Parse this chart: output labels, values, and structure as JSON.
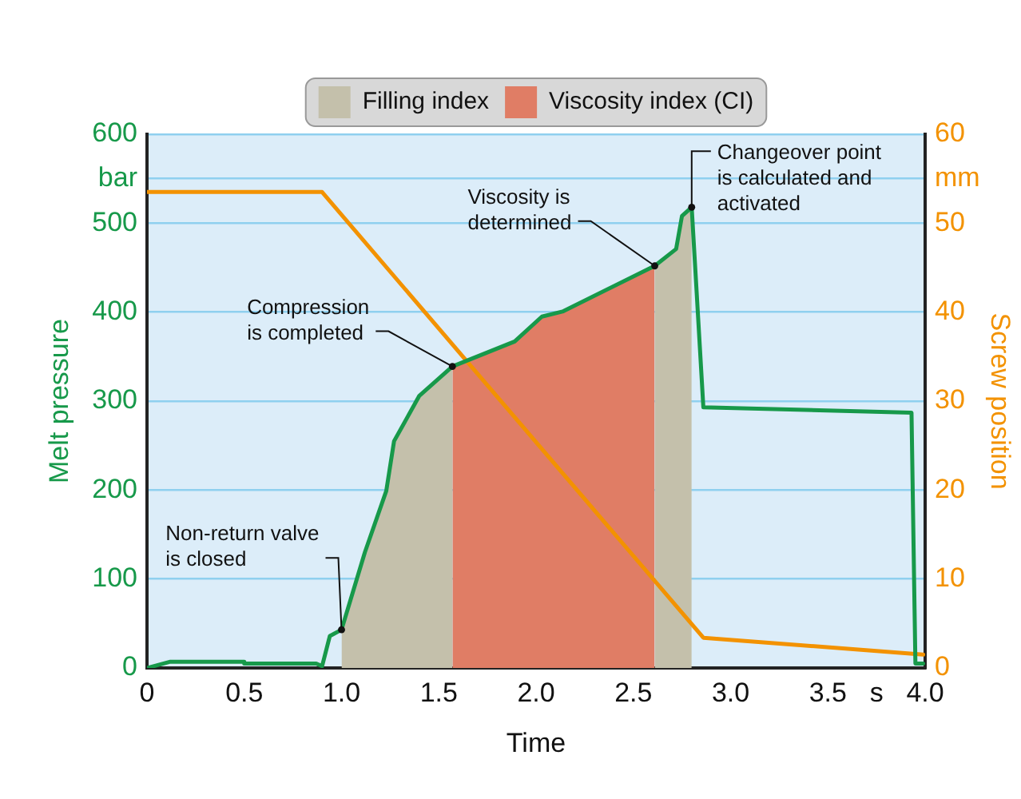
{
  "chart_data": {
    "type": "line",
    "xlabel": "Time",
    "ylabel": "Melt pressure",
    "y2label": "Screw position",
    "xlim": [
      0,
      4
    ],
    "xticks": [
      0,
      0.5,
      {
        "value": 1,
        "label": "1.0"
      },
      1.5,
      {
        "value": 2,
        "label": "2.0"
      },
      2.5,
      {
        "value": 3,
        "label": "3.0"
      },
      3.5,
      {
        "value": 3.75,
        "label": "s"
      },
      {
        "value": 4,
        "label": "4.0"
      }
    ],
    "ylim": [
      0,
      600
    ],
    "yticks": [
      0,
      100,
      200,
      300,
      400,
      500,
      {
        "value": 550,
        "label": "bar"
      },
      600
    ],
    "y2lim": [
      0,
      60
    ],
    "y2ticks": [
      0,
      10,
      20,
      30,
      40,
      50,
      {
        "value": 55,
        "label": "mm"
      },
      60
    ],
    "grid": "y",
    "legend": "top",
    "marker": "none",
    "line_style": "solid",
    "series": [
      {
        "color": "#17994a",
        "x": [
          0,
          0.12,
          0.5,
          0.5,
          0.87,
          0.9,
          0.94,
          1.0,
          1.12,
          1.23,
          1.27,
          1.4,
          1.57,
          1.89,
          2.03,
          2.14,
          2.61,
          2.72,
          2.75,
          2.8,
          2.86,
          3.93,
          3.95,
          3.99
        ],
        "values": [
          0,
          7,
          7,
          5,
          5,
          2,
          36,
          43,
          130,
          199,
          255,
          306,
          339,
          367,
          395,
          401,
          452,
          471,
          508,
          518,
          293,
          287,
          5,
          5
        ]
      },
      {
        "color": "#f39200",
        "axis": "y2",
        "x": [
          0,
          0.9,
          2.86,
          3.99
        ],
        "values": [
          53.5,
          53.5,
          3.4,
          1.5
        ]
      },
      {
        "type": "area",
        "name": "Filling index",
        "color": "#c4c0ab",
        "x": [
          1.0,
          1.12,
          1.23,
          1.27,
          1.4,
          1.57,
          2.0,
          2.61,
          2.72,
          2.75,
          2.8
        ],
        "values": [
          43,
          130,
          199,
          255,
          306,
          339,
          null,
          452,
          471,
          508,
          518
        ]
      },
      {
        "type": "area",
        "name": "Viscosity index (CI)",
        "color": "#e07d65",
        "x": [
          1.57,
          1.89,
          2.03,
          2.14,
          2.61
        ],
        "values": [
          339,
          367,
          395,
          401,
          452
        ]
      }
    ],
    "annotations": [
      {
        "text": "Non-return valve\nis closed",
        "x": 1.0,
        "y": 43
      },
      {
        "text": "Compression\nis completed",
        "x": 1.57,
        "y": 339
      },
      {
        "text": "Viscosity is\ndetermined",
        "x": 2.61,
        "y": 452
      },
      {
        "text": "Changeover point\nis calculated and\nactivated",
        "x": 2.8,
        "y": 518
      }
    ]
  }
}
